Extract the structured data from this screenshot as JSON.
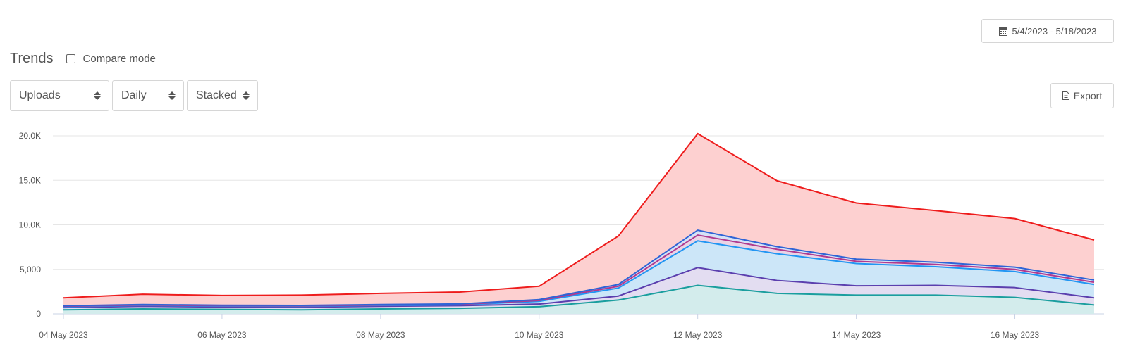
{
  "date_range": {
    "label": "5/4/2023 - 5/18/2023",
    "icon": "calendar-icon"
  },
  "header": {
    "title": "Trends",
    "compare_label": "Compare mode",
    "compare_checked": false
  },
  "controls": {
    "metric": "Uploads",
    "interval": "Daily",
    "mode": "Stacked"
  },
  "export": {
    "label": "Export",
    "icon": "file-icon"
  },
  "chart_data": {
    "type": "area",
    "stacked": true,
    "x": [
      "04 May 2023",
      "05 May 2023",
      "06 May 2023",
      "07 May 2023",
      "08 May 2023",
      "09 May 2023",
      "10 May 2023",
      "11 May 2023",
      "12 May 2023",
      "13 May 2023",
      "14 May 2023",
      "15 May 2023",
      "16 May 2023",
      "17 May 2023"
    ],
    "x_tick_labels": [
      "04 May 2023",
      "06 May 2023",
      "08 May 2023",
      "10 May 2023",
      "12 May 2023",
      "14 May 2023",
      "16 May 2023"
    ],
    "y_tick_labels": [
      "0",
      "5,000",
      "10.0K",
      "15.0K",
      "20.0K"
    ],
    "ylim": [
      0,
      20000
    ],
    "grid": true,
    "series": [
      {
        "color": "#1a9e9e",
        "fill": "#d3ecec",
        "values": [
          450,
          550,
          500,
          450,
          550,
          620,
          800,
          1550,
          3200,
          2300,
          2100,
          2100,
          1850,
          1000
        ]
      },
      {
        "color": "#5b3fae",
        "fill": "#e3ddf1",
        "values": [
          250,
          300,
          270,
          300,
          300,
          300,
          300,
          450,
          2000,
          1450,
          1050,
          1100,
          1100,
          800
        ]
      },
      {
        "color": "#2196f3",
        "fill": "#cce6f8",
        "values": [
          100,
          100,
          100,
          100,
          100,
          100,
          300,
          900,
          3000,
          3000,
          2500,
          2100,
          1800,
          1500
        ]
      },
      {
        "color": "#b03a8f",
        "fill": "#ead4e6",
        "values": [
          50,
          50,
          50,
          50,
          50,
          50,
          100,
          200,
          650,
          500,
          250,
          250,
          250,
          250
        ]
      },
      {
        "color": "#2f64d6",
        "fill": "#d6e2f6",
        "values": [
          50,
          50,
          50,
          50,
          50,
          50,
          100,
          200,
          550,
          300,
          250,
          250,
          250,
          250
        ]
      },
      {
        "color": "#ee1c1c",
        "fill": "#fdd0d0",
        "values": [
          900,
          1150,
          1100,
          1150,
          1250,
          1330,
          1500,
          5450,
          10850,
          7400,
          6300,
          5800,
          5450,
          4500
        ]
      }
    ]
  }
}
